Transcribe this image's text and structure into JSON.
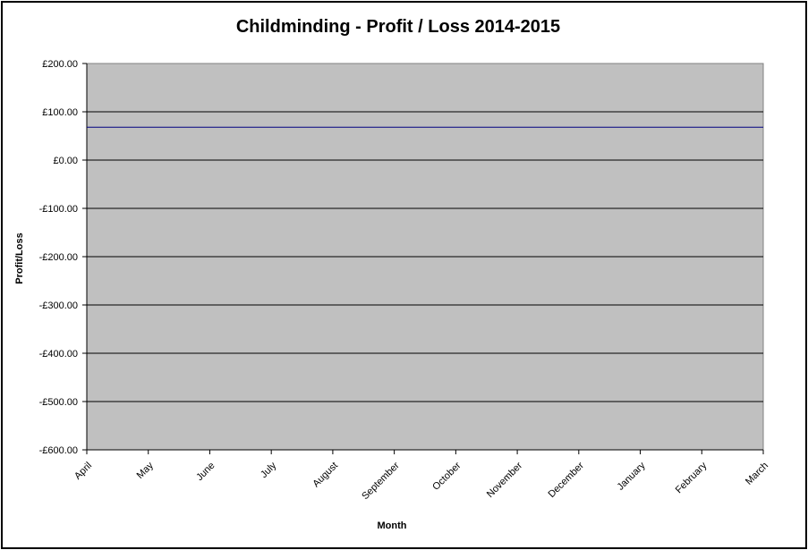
{
  "chart_data": {
    "type": "line",
    "title": "Childminding - Profit / Loss 2014-2015",
    "xlabel": "Month",
    "ylabel": "Profit/Loss",
    "categories": [
      "April",
      "May",
      "June",
      "July",
      "August",
      "September",
      "October",
      "November",
      "December",
      "January",
      "February",
      "March"
    ],
    "series": [
      {
        "values": [
          68,
          68,
          68,
          68,
          68,
          68,
          68,
          68,
          68,
          68,
          68,
          68
        ],
        "color": "#000080"
      }
    ],
    "ylim": [
      -600,
      200
    ],
    "yticks": [
      200,
      100,
      0,
      -100,
      -200,
      -300,
      -400,
      -500,
      -600
    ],
    "ytick_labels": [
      "£200.00",
      "£100.00",
      "£0.00",
      "-£100.00",
      "-£200.00",
      "-£300.00",
      "-£400.00",
      "-£500.00",
      "-£600.00"
    ],
    "grid": true,
    "plot_background": "#c0c0c0",
    "gridline_color": "#000000",
    "legend": "none"
  }
}
